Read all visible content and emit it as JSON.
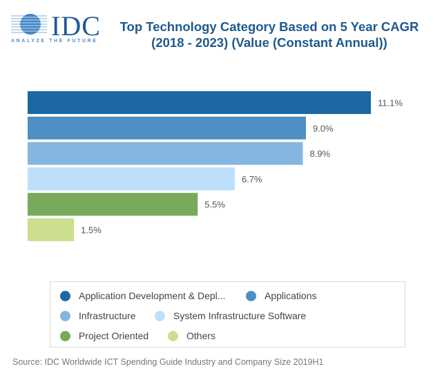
{
  "logo": {
    "name": "IDC",
    "tagline": "ANALYZE THE FUTURE",
    "icon": "globe-lines-icon"
  },
  "chart_data": {
    "type": "bar",
    "orientation": "horizontal",
    "title": "Top Technology Category Based on 5 Year CAGR (2018 - 2023) (Value (Constant Annual))",
    "title_lines": [
      "Top Technology Category Based on 5 Year CAGR",
      "(2018 - 2023) (Value (Constant Annual))"
    ],
    "xlabel": "",
    "ylabel": "",
    "xlim": [
      0,
      11.1
    ],
    "grid": false,
    "legend_position": "bottom",
    "categories": [
      "Application Development & Depl...",
      "Applications",
      "Infrastructure",
      "System Infrastructure Software",
      "Project Oriented",
      "Others"
    ],
    "values": [
      11.1,
      9.0,
      8.9,
      6.7,
      5.5,
      1.5
    ],
    "value_labels": [
      "11.1%",
      "9.0%",
      "8.9%",
      "6.7%",
      "5.5%",
      "1.5%"
    ],
    "colors": [
      "#1c68a2",
      "#4d8fc3",
      "#84b6df",
      "#bcdffb",
      "#78aa5c",
      "#cbdf8e"
    ],
    "unit": "%"
  },
  "source": "Source: IDC Worldwide ICT Spending Guide Industry and Company Size 2019H1"
}
